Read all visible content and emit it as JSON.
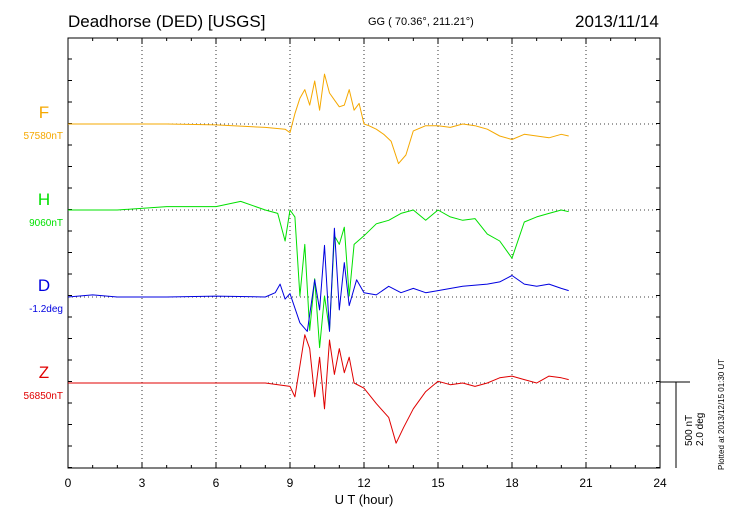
{
  "header": {
    "station": "Deadhorse (DED)  [USGS]",
    "coords": "GG ( 70.36°, 211.21°)",
    "date": "2013/11/14"
  },
  "chart_data": {
    "type": "line",
    "xlabel": "U T (hour)",
    "xlim": [
      0,
      24
    ],
    "xticks": [
      0,
      3,
      6,
      9,
      12,
      15,
      18,
      21,
      24
    ],
    "grid": true,
    "series": [
      {
        "name": "F",
        "baseline_label": "57580nT",
        "color": "#f5a800",
        "x": [
          0,
          2,
          4,
          6,
          8,
          8.8,
          9,
          9.2,
          9.4,
          9.6,
          9.8,
          10,
          10.2,
          10.4,
          10.6,
          10.8,
          11,
          11.2,
          11.4,
          11.6,
          11.8,
          12,
          12.2,
          12.5,
          12.8,
          13.1,
          13.4,
          13.7,
          14,
          14.5,
          15,
          15.5,
          16,
          16.5,
          17,
          17.5,
          18,
          18.5,
          19,
          19.5,
          20,
          20.3
        ],
        "y": [
          0,
          0,
          0,
          -5,
          -20,
          -30,
          -50,
          60,
          150,
          200,
          110,
          250,
          80,
          290,
          180,
          140,
          100,
          110,
          200,
          80,
          120,
          0,
          -10,
          -30,
          -60,
          -100,
          -230,
          -180,
          -40,
          -10,
          -10,
          -20,
          0,
          -10,
          -30,
          -70,
          -90,
          -60,
          -70,
          -80,
          -60,
          -70
        ]
      },
      {
        "name": "H",
        "baseline_label": "9060nT",
        "color": "#00e000",
        "x": [
          0,
          2,
          4,
          6,
          7,
          8,
          8.5,
          8.8,
          9,
          9.2,
          9.4,
          9.6,
          9.8,
          10,
          10.2,
          10.4,
          10.6,
          10.8,
          11,
          11.2,
          11.4,
          11.6,
          12,
          12.5,
          13,
          13.5,
          14,
          14.5,
          15,
          15.5,
          16,
          16.5,
          17,
          17.5,
          18,
          18.5,
          19,
          19.5,
          20,
          20.3
        ],
        "y": [
          0,
          0,
          20,
          20,
          50,
          0,
          -20,
          -180,
          0,
          -40,
          -500,
          -200,
          -700,
          -400,
          -800,
          -500,
          -700,
          -150,
          -200,
          -100,
          -500,
          -200,
          -150,
          -80,
          -60,
          -20,
          0,
          -60,
          0,
          -40,
          -60,
          -50,
          -140,
          -180,
          -280,
          -70,
          -40,
          -20,
          0,
          -10
        ]
      },
      {
        "name": "D",
        "baseline_label": "-1.2deg",
        "color": "#0000e0",
        "x": [
          0,
          1,
          2,
          4,
          6,
          8,
          8.4,
          8.6,
          8.8,
          9,
          9.4,
          9.7,
          10,
          10.2,
          10.4,
          10.6,
          10.8,
          11,
          11.2,
          11.4,
          11.7,
          12,
          12.5,
          13,
          13.5,
          14,
          14.5,
          15,
          16,
          17,
          17.5,
          18,
          18.5,
          19,
          19.5,
          20,
          20.3
        ],
        "y": [
          0,
          0.05,
          0,
          0,
          0.02,
          0,
          0.1,
          0.3,
          -0.05,
          0.08,
          -0.6,
          -0.8,
          0.4,
          -0.3,
          1.2,
          -0.8,
          1.6,
          -0.3,
          0.8,
          -0.2,
          0.4,
          0.1,
          0.05,
          0.25,
          0.1,
          0.2,
          0.1,
          0.15,
          0.25,
          0.3,
          0.35,
          0.5,
          0.3,
          0.25,
          0.3,
          0.2,
          0.15
        ]
      },
      {
        "name": "Z",
        "baseline_label": "56850nT",
        "color": "#e00000",
        "x": [
          0,
          2,
          4,
          6,
          8,
          9,
          9.2,
          9.4,
          9.6,
          9.8,
          10,
          10.2,
          10.4,
          10.6,
          10.8,
          11,
          11.2,
          11.4,
          11.6,
          12,
          12.5,
          13,
          13.3,
          13.6,
          14,
          14.5,
          15,
          15.5,
          16,
          16.5,
          17,
          17.5,
          18,
          18.5,
          19,
          19.5,
          20,
          20.3
        ],
        "y": [
          0,
          0,
          0,
          0,
          0,
          -20,
          -80,
          100,
          280,
          200,
          -80,
          150,
          -150,
          250,
          50,
          200,
          60,
          150,
          0,
          -30,
          -120,
          -200,
          -350,
          -260,
          -150,
          -50,
          10,
          -10,
          0,
          -20,
          0,
          30,
          40,
          20,
          0,
          40,
          30,
          20
        ]
      }
    ],
    "scale_bar": {
      "nT": "500 nT",
      "deg": "2.0 deg"
    },
    "plotted_note": "Plotted at 2013/12/15 01:30 UT"
  }
}
